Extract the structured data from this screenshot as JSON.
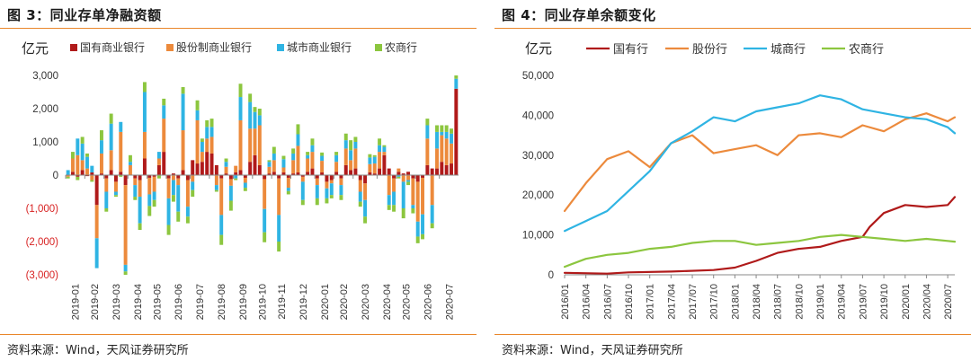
{
  "left": {
    "title": "图 3：同业存单净融资额",
    "source": "资料来源：Wind，天风证券研究所",
    "unit": "亿元",
    "chart_data": {
      "type": "bar",
      "stacked": true,
      "yunit": "亿元",
      "ylim": [
        -3000,
        3000
      ],
      "yticks": [
        "3,000",
        "2,000",
        "1,000",
        "0",
        "(1,000)",
        "(2,000)",
        "(3,000)"
      ],
      "ytick_values": [
        3000,
        2000,
        1000,
        0,
        -1000,
        -2000,
        -3000
      ],
      "xtick_labels": [
        "2019-01",
        "2019-02",
        "2019-03",
        "2019-04",
        "2019-05",
        "2019-06",
        "2019-07",
        "2019-08",
        "2019-09",
        "2019-10",
        "2019-11",
        "2019-12",
        "2020-01",
        "2020-02",
        "2020-03",
        "2020-04",
        "2020-05",
        "2020-06",
        "2020-07"
      ],
      "legend": [
        "国有商业银行",
        "股份制商业银行",
        "城市商业银行",
        "农商行"
      ],
      "colors": {
        "国有商业银行": "#b01a1a",
        "股份制商业银行": "#ec8a3c",
        "城市商业银行": "#2fb4e3",
        "农商行": "#8cc63f",
        "negative_tick": "#d82222"
      },
      "weeks_per_month": [
        4,
        4,
        5,
        4,
        4,
        5,
        4,
        5,
        4,
        4,
        4,
        5,
        4,
        4,
        5,
        4,
        4,
        5,
        4
      ],
      "series": [
        {
          "name": "国有商业银行",
          "values": [
            0,
            100,
            -50,
            150,
            -30,
            80,
            -900,
            50,
            -100,
            150,
            -200,
            100,
            -300,
            0,
            -100,
            -150,
            500,
            -80,
            -50,
            300,
            700,
            -100,
            50,
            -100,
            150,
            -150,
            450,
            350,
            400,
            700,
            650,
            300,
            -100,
            50,
            -120,
            80,
            150,
            -80,
            400,
            600,
            300,
            -120,
            50,
            100,
            -100,
            80,
            -80,
            50,
            80,
            -50,
            100,
            200,
            -100,
            80,
            -200,
            -150,
            100,
            -100,
            300,
            150,
            200,
            -150,
            -250,
            80,
            50,
            200,
            600,
            200,
            -100,
            100,
            50,
            100,
            -100,
            -200,
            -80,
            300,
            200,
            200,
            400,
            300,
            350,
            2600
          ]
        },
        {
          "name": "股份制商业银行",
          "values": [
            -50,
            400,
            600,
            300,
            200,
            -150,
            -1000,
            600,
            -400,
            600,
            -300,
            1200,
            -2400,
            300,
            -200,
            -500,
            800,
            -500,
            -450,
            200,
            1000,
            -600,
            -150,
            -200,
            1200,
            -800,
            -200,
            1300,
            300,
            400,
            500,
            -300,
            -1100,
            200,
            -200,
            200,
            1500,
            -150,
            1000,
            800,
            1200,
            -900,
            200,
            350,
            -1100,
            150,
            -300,
            400,
            800,
            -150,
            400,
            500,
            -200,
            350,
            -200,
            -100,
            300,
            -200,
            500,
            300,
            600,
            -350,
            -500,
            250,
            300,
            500,
            100,
            -600,
            -400,
            100,
            -200,
            -150,
            -800,
            -1200,
            -1100,
            800,
            -900,
            600,
            800,
            800,
            600,
            0
          ]
        },
        {
          "name": "城市商业银行",
          "values": [
            150,
            0,
            500,
            500,
            350,
            200,
            -900,
            400,
            -500,
            800,
            -100,
            300,
            -200,
            100,
            -350,
            -800,
            1200,
            -350,
            -250,
            200,
            400,
            -800,
            -450,
            -800,
            1100,
            -300,
            -250,
            300,
            300,
            350,
            300,
            -150,
            -600,
            150,
            -450,
            -100,
            700,
            -150,
            800,
            500,
            300,
            -700,
            150,
            200,
            -800,
            250,
            -100,
            200,
            350,
            -550,
            100,
            200,
            -400,
            150,
            -300,
            -350,
            200,
            -300,
            250,
            300,
            200,
            -300,
            -500,
            200,
            200,
            200,
            150,
            -300,
            -400,
            -50,
            -800,
            -50,
            -100,
            -450,
            -600,
            400,
            -550,
            500,
            100,
            200,
            300,
            300
          ]
        },
        {
          "name": "农商行",
          "values": [
            -50,
            200,
            -100,
            200,
            100,
            -50,
            0,
            300,
            -100,
            300,
            -50,
            -50,
            -100,
            200,
            -100,
            -200,
            300,
            -300,
            -200,
            -100,
            200,
            -300,
            -200,
            -300,
            200,
            -200,
            -200,
            300,
            100,
            200,
            250,
            -50,
            -300,
            100,
            -300,
            -50,
            400,
            -100,
            250,
            150,
            200,
            -300,
            50,
            200,
            -300,
            100,
            -100,
            150,
            300,
            -150,
            100,
            200,
            -200,
            100,
            -150,
            -100,
            100,
            -150,
            200,
            300,
            150,
            -150,
            -200,
            100,
            50,
            200,
            50,
            -150,
            -200,
            -50,
            -300,
            -100,
            -150,
            -200,
            -150,
            200,
            -150,
            200,
            200,
            200,
            150,
            100
          ]
        }
      ]
    }
  },
  "right": {
    "title": "图 4：同业存单余额变化",
    "source": "资料来源：Wind，天风证券研究所",
    "unit": "亿元",
    "chart_data": {
      "type": "line",
      "yunit": "亿元",
      "ylim": [
        0,
        50000
      ],
      "yticks": [
        "50,000",
        "40,000",
        "30,000",
        "20,000",
        "10,000",
        "0"
      ],
      "ytick_values": [
        50000,
        40000,
        30000,
        20000,
        10000,
        0
      ],
      "x": [
        "2016/01",
        "2016/04",
        "2016/07",
        "2016/10",
        "2017/01",
        "2017/04",
        "2017/07",
        "2017/10",
        "2018/01",
        "2018/04",
        "2018/07",
        "2018/10",
        "2019/01",
        "2019/04",
        "2019/07",
        "2019/10",
        "2020/01",
        "2020/04",
        "2020/07"
      ],
      "legend": [
        "国有行",
        "股份行",
        "城商行",
        "农商行"
      ],
      "colors": {
        "国有行": "#b01a1a",
        "股份行": "#ec8a3c",
        "城商行": "#2fb4e3",
        "农商行": "#8cc63f"
      },
      "series": [
        {
          "name": "国有行",
          "points": [
            [
              "2016/01",
              500
            ],
            [
              "2016/07",
              300
            ],
            [
              "2016/10",
              600
            ],
            [
              "2017/04",
              800
            ],
            [
              "2017/10",
              1200
            ],
            [
              "2018/01",
              1800
            ],
            [
              "2018/04",
              3500
            ],
            [
              "2018/07",
              5500
            ],
            [
              "2018/10",
              6500
            ],
            [
              "2019/01",
              7000
            ],
            [
              "2019/04",
              8500
            ],
            [
              "2019/07",
              9500
            ],
            [
              "2019/08",
              12000
            ],
            [
              "2019/10",
              15500
            ],
            [
              "2020/01",
              17500
            ],
            [
              "2020/04",
              17000
            ],
            [
              "2020/07",
              17500
            ],
            [
              "2020/08",
              19500
            ]
          ]
        },
        {
          "name": "股份行",
          "points": [
            [
              "2016/01",
              16000
            ],
            [
              "2016/04",
              23000
            ],
            [
              "2016/07",
              29000
            ],
            [
              "2016/10",
              31000
            ],
            [
              "2017/01",
              27000
            ],
            [
              "2017/04",
              33000
            ],
            [
              "2017/07",
              35000
            ],
            [
              "2017/10",
              30500
            ],
            [
              "2018/01",
              31500
            ],
            [
              "2018/04",
              32500
            ],
            [
              "2018/07",
              30000
            ],
            [
              "2018/10",
              35000
            ],
            [
              "2019/01",
              35500
            ],
            [
              "2019/04",
              34500
            ],
            [
              "2019/07",
              37500
            ],
            [
              "2019/10",
              36000
            ],
            [
              "2020/01",
              39000
            ],
            [
              "2020/04",
              40500
            ],
            [
              "2020/07",
              38500
            ],
            [
              "2020/08",
              39500
            ]
          ]
        },
        {
          "name": "城商行",
          "points": [
            [
              "2016/01",
              11000
            ],
            [
              "2016/04",
              13500
            ],
            [
              "2016/07",
              16000
            ],
            [
              "2016/10",
              21000
            ],
            [
              "2017/01",
              26000
            ],
            [
              "2017/04",
              33000
            ],
            [
              "2017/07",
              36000
            ],
            [
              "2017/10",
              39500
            ],
            [
              "2018/01",
              38500
            ],
            [
              "2018/04",
              41000
            ],
            [
              "2018/07",
              42000
            ],
            [
              "2018/10",
              43000
            ],
            [
              "2019/01",
              45000
            ],
            [
              "2019/04",
              44000
            ],
            [
              "2019/07",
              41500
            ],
            [
              "2019/10",
              40500
            ],
            [
              "2020/01",
              39500
            ],
            [
              "2020/04",
              39000
            ],
            [
              "2020/07",
              37000
            ],
            [
              "2020/08",
              35500
            ]
          ]
        },
        {
          "name": "农商行",
          "points": [
            [
              "2016/01",
              2000
            ],
            [
              "2016/04",
              4000
            ],
            [
              "2016/07",
              5000
            ],
            [
              "2016/10",
              5500
            ],
            [
              "2017/01",
              6500
            ],
            [
              "2017/04",
              7000
            ],
            [
              "2017/07",
              8000
            ],
            [
              "2017/10",
              8500
            ],
            [
              "2018/01",
              8500
            ],
            [
              "2018/04",
              7500
            ],
            [
              "2018/07",
              8000
            ],
            [
              "2018/10",
              8500
            ],
            [
              "2019/01",
              9500
            ],
            [
              "2019/04",
              10000
            ],
            [
              "2019/07",
              9500
            ],
            [
              "2019/10",
              9000
            ],
            [
              "2020/01",
              8500
            ],
            [
              "2020/04",
              9000
            ],
            [
              "2020/07",
              8500
            ],
            [
              "2020/08",
              8300
            ]
          ]
        }
      ]
    }
  }
}
